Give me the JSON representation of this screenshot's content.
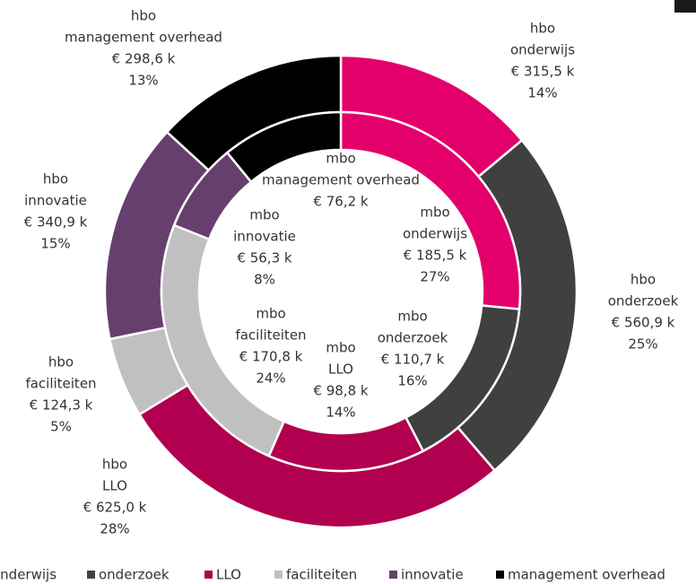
{
  "chart_data": {
    "type": "donut",
    "categories": [
      "onderwijs",
      "onderzoek",
      "LLO",
      "faciliteiten",
      "innovatie",
      "management overhead"
    ],
    "colors": [
      "#e4006b",
      "#404040",
      "#b1004f",
      "#c0c0c0",
      "#673f6e",
      "#000000"
    ],
    "series": [
      {
        "name": "hbo",
        "values": [
          315.5,
          560.9,
          625.0,
          124.3,
          340.9,
          298.6
        ],
        "value_labels": [
          "€ 315,5 k",
          "€ 560,9 k",
          "€ 625,0 k",
          "€ 124,3 k",
          "€ 340,9 k",
          "€ 298,6 k"
        ],
        "percent_labels": [
          "14%",
          "25%",
          "28%",
          "5%",
          "15%",
          "13%"
        ]
      },
      {
        "name": "mbo",
        "values": [
          185.5,
          110.7,
          98.8,
          170.8,
          56.3,
          76.2
        ],
        "value_labels": [
          "€ 185,5 k",
          "€ 110,7 k",
          "€ 98,8 k",
          "€ 170,8 k",
          "€ 56,3 k",
          "€ 76,2 k"
        ],
        "percent_labels": [
          "27%",
          "16%",
          "14%",
          "24%",
          "8%",
          null
        ]
      }
    ],
    "legend": "bottom"
  }
}
